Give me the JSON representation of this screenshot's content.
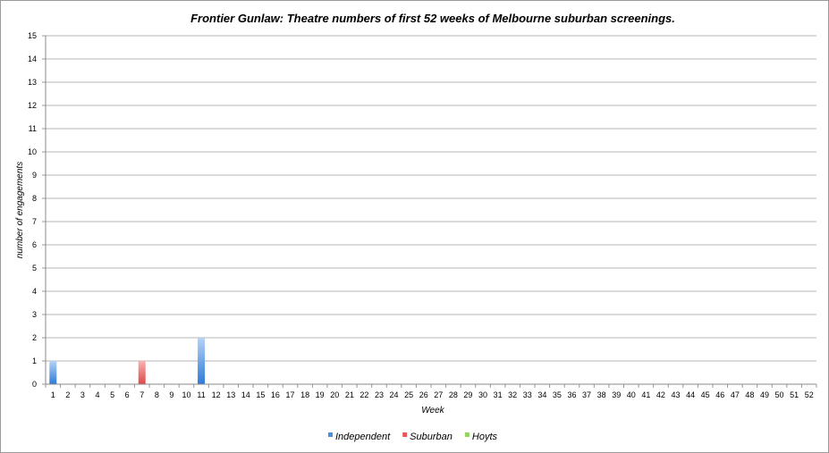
{
  "chart_data": {
    "type": "bar",
    "stacked": true,
    "title": "Frontier Gunlaw: Theatre numbers of first 52 weeks of Melbourne suburban screenings.",
    "xlabel": "Week",
    "ylabel": "number of engagements",
    "ylim": [
      0,
      15
    ],
    "grid": true,
    "legend_position": "bottom",
    "categories": [
      "1",
      "2",
      "3",
      "4",
      "5",
      "6",
      "7",
      "8",
      "9",
      "10",
      "11",
      "12",
      "13",
      "14",
      "15",
      "16",
      "17",
      "18",
      "19",
      "20",
      "21",
      "22",
      "23",
      "24",
      "25",
      "26",
      "27",
      "28",
      "29",
      "30",
      "31",
      "32",
      "33",
      "34",
      "35",
      "36",
      "37",
      "38",
      "39",
      "40",
      "41",
      "42",
      "43",
      "44",
      "45",
      "46",
      "47",
      "48",
      "49",
      "50",
      "51",
      "52"
    ],
    "yticks": [
      "0",
      "1",
      "2",
      "3",
      "4",
      "5",
      "6",
      "7",
      "8",
      "9",
      "10",
      "11",
      "12",
      "13",
      "14",
      "15"
    ],
    "series": [
      {
        "name": "Independent",
        "color": "#4a8fe0",
        "values": [
          1,
          0,
          0,
          0,
          0,
          0,
          0,
          0,
          0,
          0,
          2,
          0,
          0,
          0,
          0,
          0,
          0,
          0,
          0,
          0,
          0,
          0,
          0,
          0,
          0,
          0,
          0,
          0,
          0,
          0,
          0,
          0,
          0,
          0,
          0,
          0,
          0,
          0,
          0,
          0,
          0,
          0,
          0,
          0,
          0,
          0,
          0,
          0,
          0,
          0,
          0,
          0
        ]
      },
      {
        "name": "Suburban",
        "color": "#e85858",
        "values": [
          0,
          0,
          0,
          0,
          0,
          0,
          1,
          0,
          0,
          0,
          0,
          0,
          0,
          0,
          0,
          0,
          0,
          0,
          0,
          0,
          0,
          0,
          0,
          0,
          0,
          0,
          0,
          0,
          0,
          0,
          0,
          0,
          0,
          0,
          0,
          0,
          0,
          0,
          0,
          0,
          0,
          0,
          0,
          0,
          0,
          0,
          0,
          0,
          0,
          0,
          0,
          0
        ]
      },
      {
        "name": "Hoyts",
        "color": "#8fd660",
        "values": [
          0,
          0,
          0,
          0,
          0,
          0,
          0,
          0,
          0,
          0,
          0,
          0,
          0,
          0,
          0,
          0,
          0,
          0,
          0,
          0,
          0,
          0,
          0,
          0,
          0,
          0,
          0,
          0,
          0,
          0,
          0,
          0,
          0,
          0,
          0,
          0,
          0,
          0,
          0,
          0,
          0,
          0,
          0,
          0,
          0,
          0,
          0,
          0,
          0,
          0,
          0,
          0
        ]
      }
    ]
  }
}
